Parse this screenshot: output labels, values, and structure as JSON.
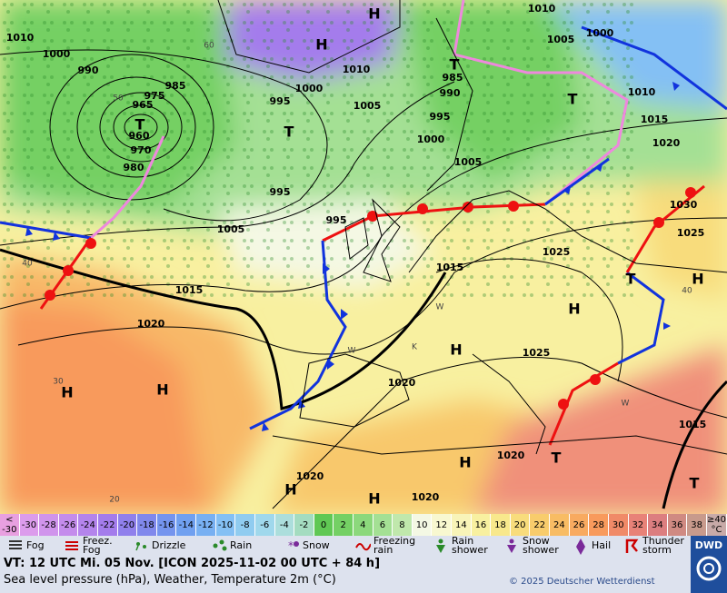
{
  "map": {
    "isobar_labels": [
      "1010",
      "1000",
      "990",
      "985",
      "975",
      "965",
      "960",
      "970",
      "980",
      "995",
      "1000",
      "1005",
      "1010",
      "1010",
      "1005",
      "1000",
      "985",
      "990",
      "995",
      "1000",
      "1005",
      "1010",
      "1015",
      "1020",
      "1030",
      "1025",
      "995",
      "1005",
      "995",
      "1015",
      "1015",
      "1020",
      "1025",
      "1025",
      "1020",
      "1015",
      "1020",
      "1020",
      "1020"
    ],
    "pressure_centers": [
      "H",
      "H",
      "T",
      "T",
      "T",
      "T",
      "H",
      "H",
      "H",
      "H",
      "H",
      "T",
      "H",
      "H",
      "H",
      "T",
      "T"
    ],
    "temperature_labels": [
      "60",
      "50",
      "40",
      "30",
      "20",
      "40",
      "W",
      "K",
      "W",
      "W"
    ]
  },
  "legend": {
    "scale": [
      {
        "label": "<\n-30",
        "color": "#e8a0e0"
      },
      {
        "label": "-30",
        "color": "#dc9cec"
      },
      {
        "label": "-28",
        "color": "#d094ec"
      },
      {
        "label": "-26",
        "color": "#c48cec"
      },
      {
        "label": "-24",
        "color": "#b484ec"
      },
      {
        "label": "-22",
        "color": "#a47cec"
      },
      {
        "label": "-20",
        "color": "#9080ec"
      },
      {
        "label": "-18",
        "color": "#8088ec"
      },
      {
        "label": "-16",
        "color": "#7494ee"
      },
      {
        "label": "-14",
        "color": "#70a0f0"
      },
      {
        "label": "-12",
        "color": "#78b0f2"
      },
      {
        "label": "-10",
        "color": "#84c0f4"
      },
      {
        "label": "-8",
        "color": "#90ccf0"
      },
      {
        "label": "-6",
        "color": "#a0d8ec"
      },
      {
        "label": "-4",
        "color": "#acdedc"
      },
      {
        "label": "-2",
        "color": "#a4dcc0"
      },
      {
        "label": "0",
        "color": "#60c854"
      },
      {
        "label": "2",
        "color": "#74d064"
      },
      {
        "label": "4",
        "color": "#8cd87c"
      },
      {
        "label": "6",
        "color": "#a4e094"
      },
      {
        "label": "8",
        "color": "#c0e8ac"
      },
      {
        "label": "10",
        "color": "#f4f8e4"
      },
      {
        "label": "12",
        "color": "#f8f8d0"
      },
      {
        "label": "14",
        "color": "#f8f4b8"
      },
      {
        "label": "16",
        "color": "#f8f0a0"
      },
      {
        "label": "18",
        "color": "#f8e88c"
      },
      {
        "label": "20",
        "color": "#f8dc7c"
      },
      {
        "label": "22",
        "color": "#f8cc6c"
      },
      {
        "label": "24",
        "color": "#f8bc64"
      },
      {
        "label": "26",
        "color": "#f8aa60"
      },
      {
        "label": "28",
        "color": "#f89a5c"
      },
      {
        "label": "30",
        "color": "#f08a68"
      },
      {
        "label": "32",
        "color": "#e88278"
      },
      {
        "label": "34",
        "color": "#dc7e80"
      },
      {
        "label": "36",
        "color": "#d08a82"
      },
      {
        "label": "38",
        "color": "#c89a8c"
      },
      {
        "label": "≥40\n°C",
        "color": "#c8aaa8"
      }
    ],
    "weather": [
      "Fog",
      "Freez.\nFog",
      "Drizzle",
      "Rain",
      "Snow",
      "Freezing\nrain",
      "Rain\nshower",
      "Snow\nshower",
      "Hail",
      "Thunder\nstorm"
    ]
  },
  "footer": {
    "valid_time": "VT: 12 UTC Mi.  05 Nov. [ICON 2025-11-02  00 UTC + 84 h]",
    "description": "Sea level pressure (hPa), Weather, Temperature 2m (°C)",
    "copyright": "© 2025 Deutscher Wetterdienst",
    "logo": "DWD"
  }
}
